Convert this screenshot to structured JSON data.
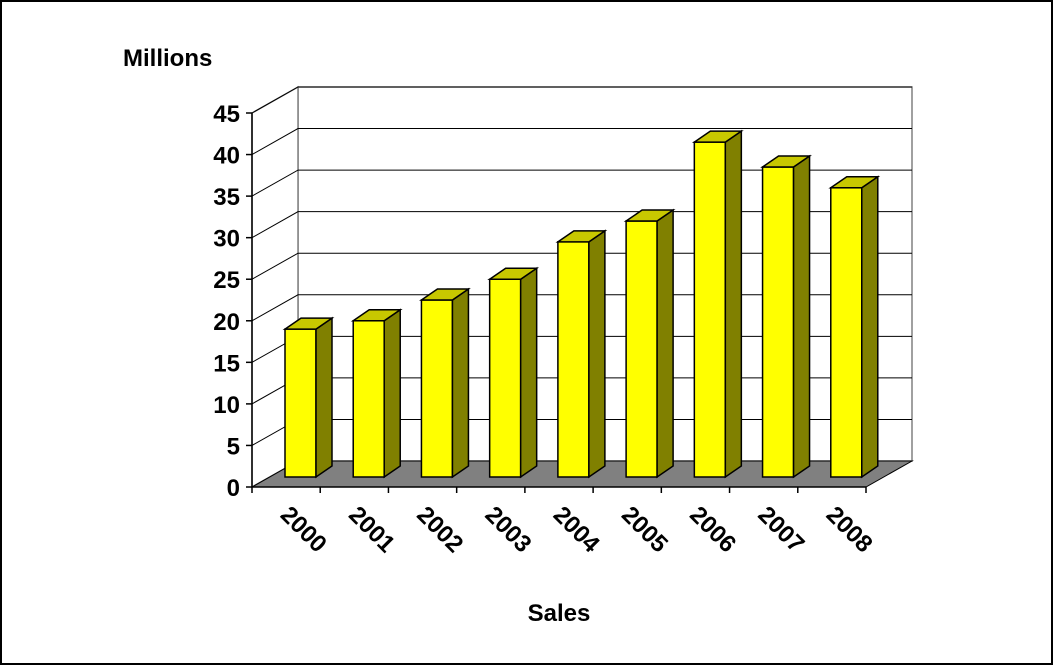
{
  "chart_data": {
    "type": "bar",
    "title": "",
    "ylabel": "Millions",
    "xlabel": "Sales",
    "categories": [
      "2000",
      "2001",
      "2002",
      "2003",
      "2004",
      "2005",
      "2006",
      "2007",
      "2008"
    ],
    "values": [
      19,
      20,
      22.5,
      25,
      29.5,
      32,
      41.5,
      38.5,
      36
    ],
    "ylim": [
      0,
      45
    ],
    "yticks": [
      "0",
      "5",
      "10",
      "15",
      "20",
      "25",
      "30",
      "35",
      "40",
      "45"
    ],
    "grid": true,
    "legend": "none",
    "style": "3d-column",
    "colors": {
      "bar_front": "#FFFF00",
      "bar_top": "#C8C800",
      "bar_side": "#808000",
      "floor": "#808080",
      "gridline": "#000000",
      "frame_border": "#000000"
    }
  }
}
